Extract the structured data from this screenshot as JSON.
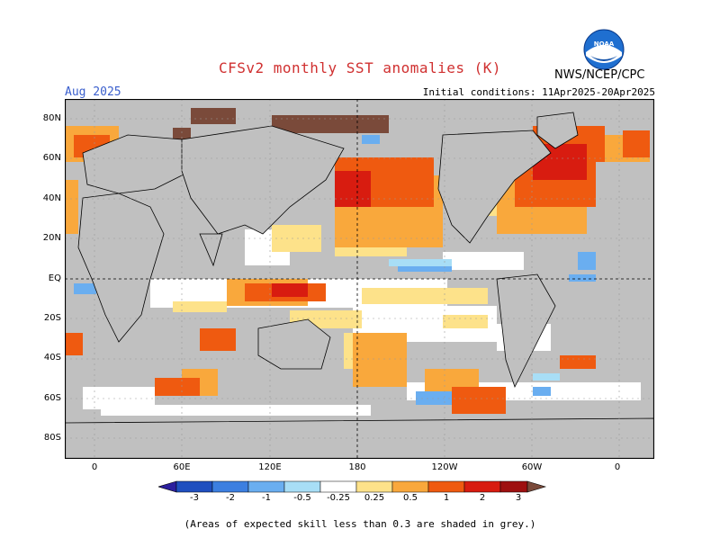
{
  "header": {
    "title": "CFSv2 monthly SST anomalies (K)",
    "month": "Aug 2025",
    "initial_conditions": "Initial conditions: 11Apr2025-20Apr2025",
    "agency": "NWS/NCEP/CPC",
    "logo_text": "NOAA"
  },
  "map": {
    "lat_labels": [
      "80N",
      "60N",
      "40N",
      "20N",
      "EQ",
      "20S",
      "40S",
      "60S",
      "80S"
    ],
    "lon_labels": [
      "0",
      "60E",
      "120E",
      "180",
      "120W",
      "60W",
      "0"
    ],
    "colors": {
      "land": "#c0c0c0",
      "ocean_neutral": "#ffffff",
      "grid": "#9a9a9a"
    }
  },
  "colorbar": {
    "labels": [
      "-3",
      "-2",
      "-1",
      "-0.5",
      "-0.25",
      "0.25",
      "0.5",
      "1",
      "2",
      "3"
    ],
    "colors": [
      "#2c1f9e",
      "#1f4fbf",
      "#3c7fe0",
      "#6aaef0",
      "#a8def6",
      "#ffffff",
      "#fde28a",
      "#f9a83c",
      "#ef5a10",
      "#d81c10",
      "#9e1010",
      "#7a4a3a"
    ]
  },
  "footer": {
    "note": "(Areas of expected skill less than 0.3 are shaded in grey.)"
  }
}
